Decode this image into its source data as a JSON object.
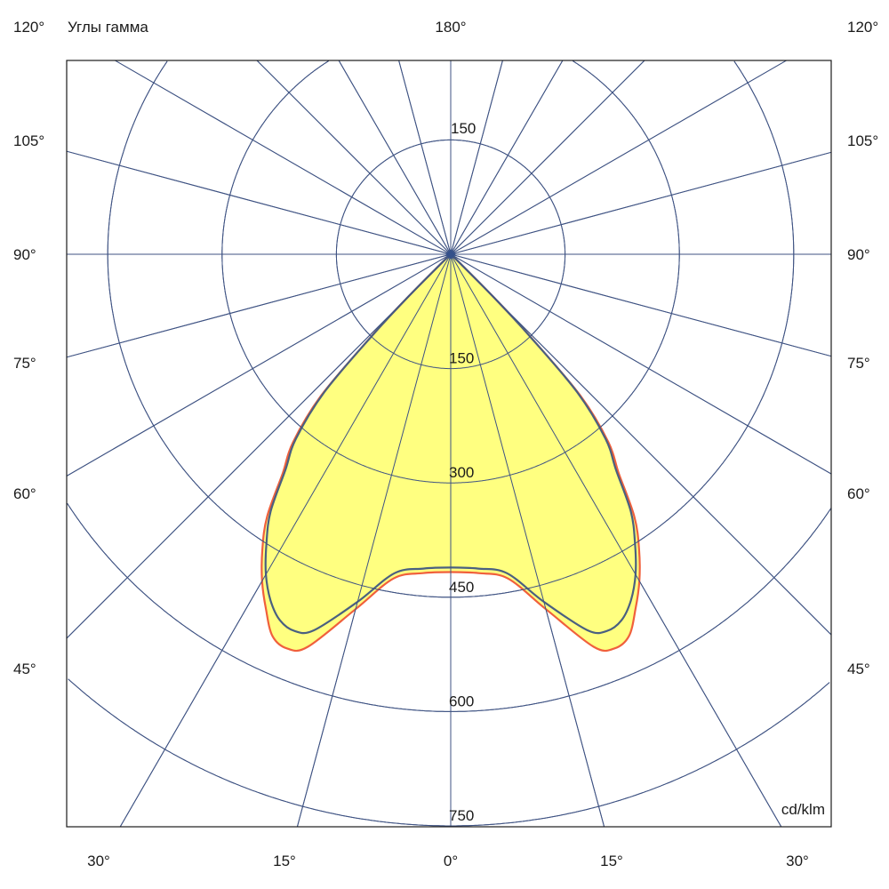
{
  "chart_data": {
    "type": "polar",
    "title": "Углы гамма",
    "unit": "cd/klm",
    "top_label": "180°",
    "side_labels": [
      "120°",
      "105°",
      "90°",
      "75°",
      "60°",
      "45°"
    ],
    "bottom_labels": [
      "30°",
      "15°",
      "0°",
      "15°",
      "30°"
    ],
    "ring_values": [
      150,
      300,
      450,
      600,
      750
    ],
    "ring_labels": [
      "150",
      "300",
      "450",
      "600",
      "750"
    ],
    "radial_step_deg": 15,
    "rmax": 750,
    "grid": true,
    "colors": {
      "grid": "#3f5383",
      "fill": "#ffff80",
      "series_outer": "#f0603c",
      "series_inner": "#4a6080"
    },
    "gamma": [
      0,
      5,
      10,
      15,
      20,
      22.5,
      25,
      27.5,
      30,
      32.5,
      35,
      37.5,
      40,
      42.5,
      44,
      45,
      46,
      50,
      90
    ],
    "series": [
      {
        "color": "#f0603c",
        "values": [
          417,
          420,
          432,
          482,
          548,
          560,
          553,
          525,
          495,
          460,
          420,
          362,
          322,
          252,
          150,
          80,
          20,
          0,
          0
        ]
      },
      {
        "color": "#4a6080",
        "values": [
          411,
          414,
          425,
          472,
          525,
          535,
          530,
          512,
          485,
          450,
          412,
          356,
          316,
          246,
          148,
          78,
          20,
          0,
          0
        ]
      }
    ]
  }
}
